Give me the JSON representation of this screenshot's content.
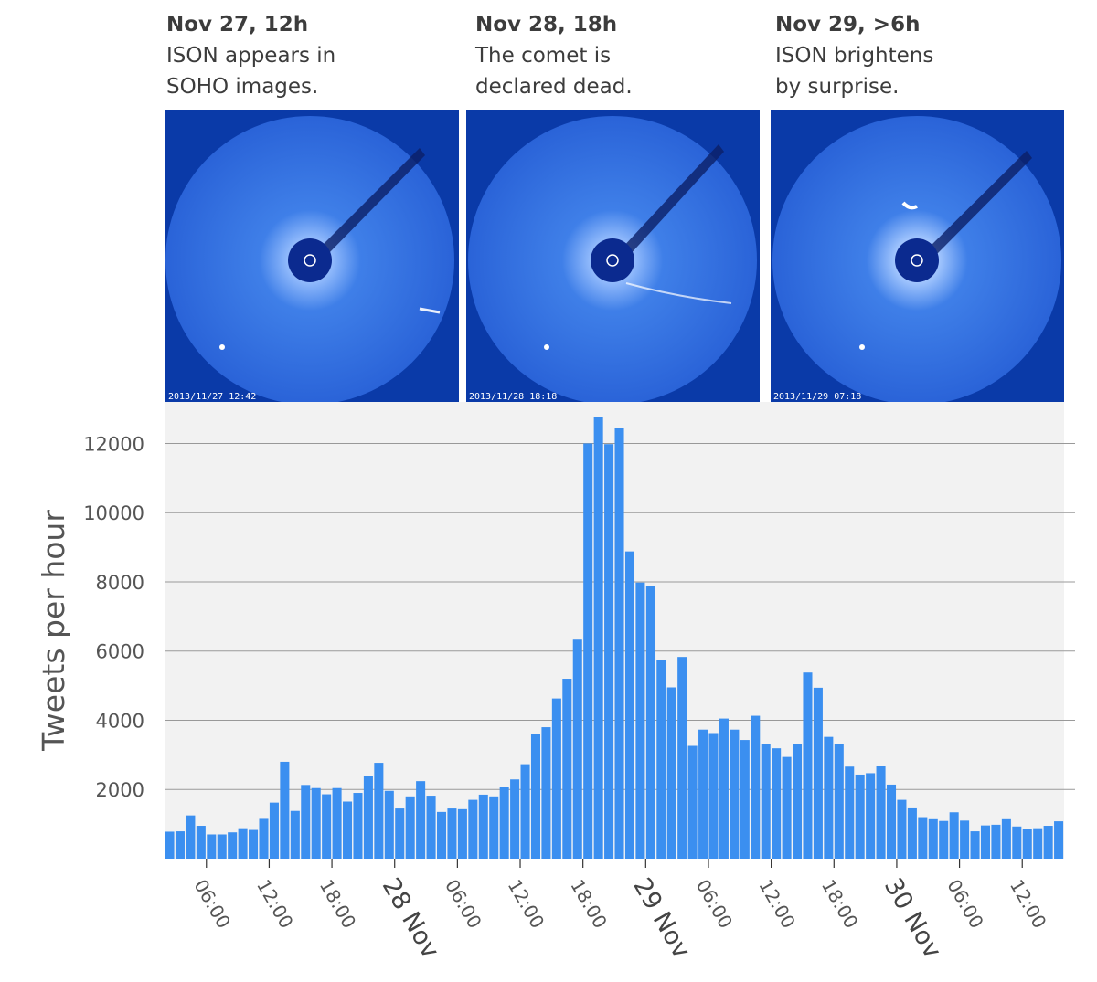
{
  "panels": [
    {
      "title": "Nov 27, 12h",
      "line1": "ISON appears in",
      "line2": "SOHO images.",
      "stamp": "2013/11/27 12:42"
    },
    {
      "title": "Nov 28, 18h",
      "line1": "The comet is",
      "line2": "declared dead.",
      "stamp": "2013/11/28 18:18"
    },
    {
      "title": "Nov 29, >6h",
      "line1": "ISON brightens",
      "line2": "by surprise.",
      "stamp": "2013/11/29 07:18"
    }
  ],
  "colors": {
    "bar": "#3b8ff0",
    "plot_bg": "#f2f2f2",
    "grid": "#999999",
    "text": "#555555",
    "lasco_bg": "#0a3aa8"
  },
  "chart_data": {
    "type": "bar",
    "ylabel": "Tweets per hour",
    "xlabel": "",
    "ylim": [
      0,
      13200
    ],
    "yticks": [
      2000,
      4000,
      6000,
      8000,
      10000,
      12000
    ],
    "x_start_hour": 2,
    "x_ticks": [
      {
        "hour": 6,
        "label": "06:00",
        "major": false
      },
      {
        "hour": 12,
        "label": "12:00",
        "major": false
      },
      {
        "hour": 18,
        "label": "18:00",
        "major": false
      },
      {
        "hour": 24,
        "label": "28 Nov",
        "major": true
      },
      {
        "hour": 30,
        "label": "06:00",
        "major": false
      },
      {
        "hour": 36,
        "label": "12:00",
        "major": false
      },
      {
        "hour": 42,
        "label": "18:00",
        "major": false
      },
      {
        "hour": 48,
        "label": "29 Nov",
        "major": true
      },
      {
        "hour": 54,
        "label": "06:00",
        "major": false
      },
      {
        "hour": 60,
        "label": "12:00",
        "major": false
      },
      {
        "hour": 66,
        "label": "18:00",
        "major": false
      },
      {
        "hour": 72,
        "label": "30 Nov",
        "major": true
      },
      {
        "hour": 78,
        "label": "06:00",
        "major": false
      },
      {
        "hour": 84,
        "label": "12:00",
        "major": false
      }
    ],
    "values": [
      780,
      790,
      1250,
      950,
      700,
      700,
      760,
      880,
      830,
      1150,
      1620,
      2800,
      1380,
      2130,
      2040,
      1860,
      2040,
      1650,
      1900,
      2400,
      2770,
      1960,
      1450,
      1800,
      2240,
      1820,
      1350,
      1450,
      1430,
      1700,
      1850,
      1800,
      2080,
      2290,
      2730,
      3600,
      3800,
      4630,
      5200,
      6330,
      12000,
      12770,
      11980,
      12450,
      8880,
      7980,
      7880,
      5750,
      4950,
      5830,
      3260,
      3730,
      3630,
      4050,
      3730,
      3430,
      4130,
      3300,
      3190,
      2940,
      3300,
      5380,
      4940,
      3520,
      3300,
      2660,
      2430,
      2470,
      2680,
      2140,
      1700,
      1480,
      1200,
      1140,
      1090,
      1340,
      1100,
      790,
      960,
      980,
      1140,
      930,
      870,
      880,
      950,
      1080
    ]
  }
}
